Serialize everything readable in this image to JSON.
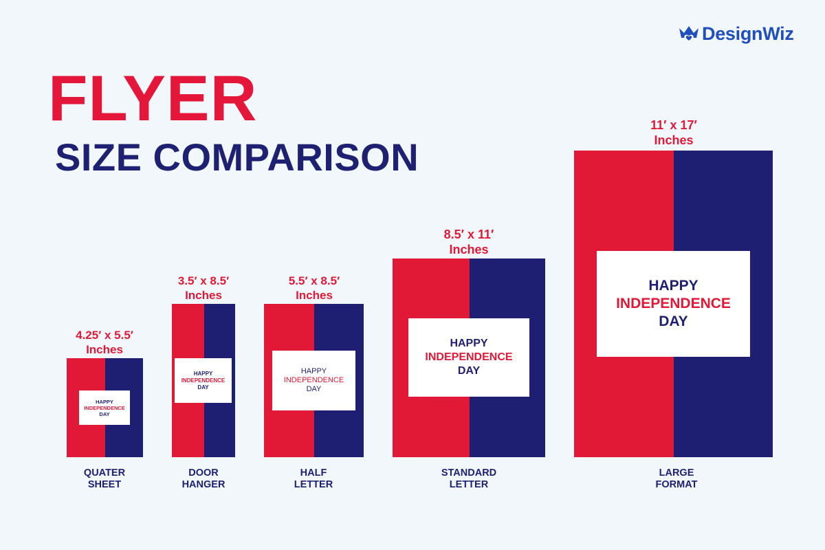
{
  "brand": {
    "name": "DesignWiz",
    "logo_icon": "crown-heart-icon",
    "color": "#1f4fbf"
  },
  "title": "FLYER",
  "subtitle": "SIZE COMPARISON",
  "colors": {
    "red": "#e11836",
    "navy": "#1e1f72",
    "background": "#f2f7fc"
  },
  "flyers": [
    {
      "id": "quarter-sheet",
      "size_line1": "4.25′ x 5.5′",
      "size_line2": "Inches",
      "name_line1": "QUATER",
      "name_line2": "SHEET",
      "card": [
        "HAPPY",
        "INDEPENDENCE",
        "DAY"
      ]
    },
    {
      "id": "door-hanger",
      "size_line1": "3.5′ x 8.5′",
      "size_line2": "Inches",
      "name_line1": "DOOR",
      "name_line2": "HANGER",
      "card": [
        "HAPPY",
        "INDEPENDENCE",
        "DAY"
      ]
    },
    {
      "id": "half-letter",
      "size_line1": "5.5′ x 8.5′",
      "size_line2": "Inches",
      "name_line1": "HALF",
      "name_line2": "LETTER",
      "card": [
        "HAPPY",
        "INDEPENDENCE",
        "DAY"
      ]
    },
    {
      "id": "standard-letter",
      "size_line1": "8.5′ x 11′",
      "size_line2": "Inches",
      "name_line1": "STANDARD",
      "name_line2": "LETTER",
      "card": [
        "HAPPY",
        "INDEPENDENCE",
        "DAY"
      ]
    },
    {
      "id": "large-format",
      "size_line1": "11′ x 17′",
      "size_line2": "Inches",
      "name_line1": "LARGE",
      "name_line2": "FORMAT",
      "card": [
        "HAPPY",
        "INDEPENDENCE",
        "DAY"
      ]
    }
  ]
}
